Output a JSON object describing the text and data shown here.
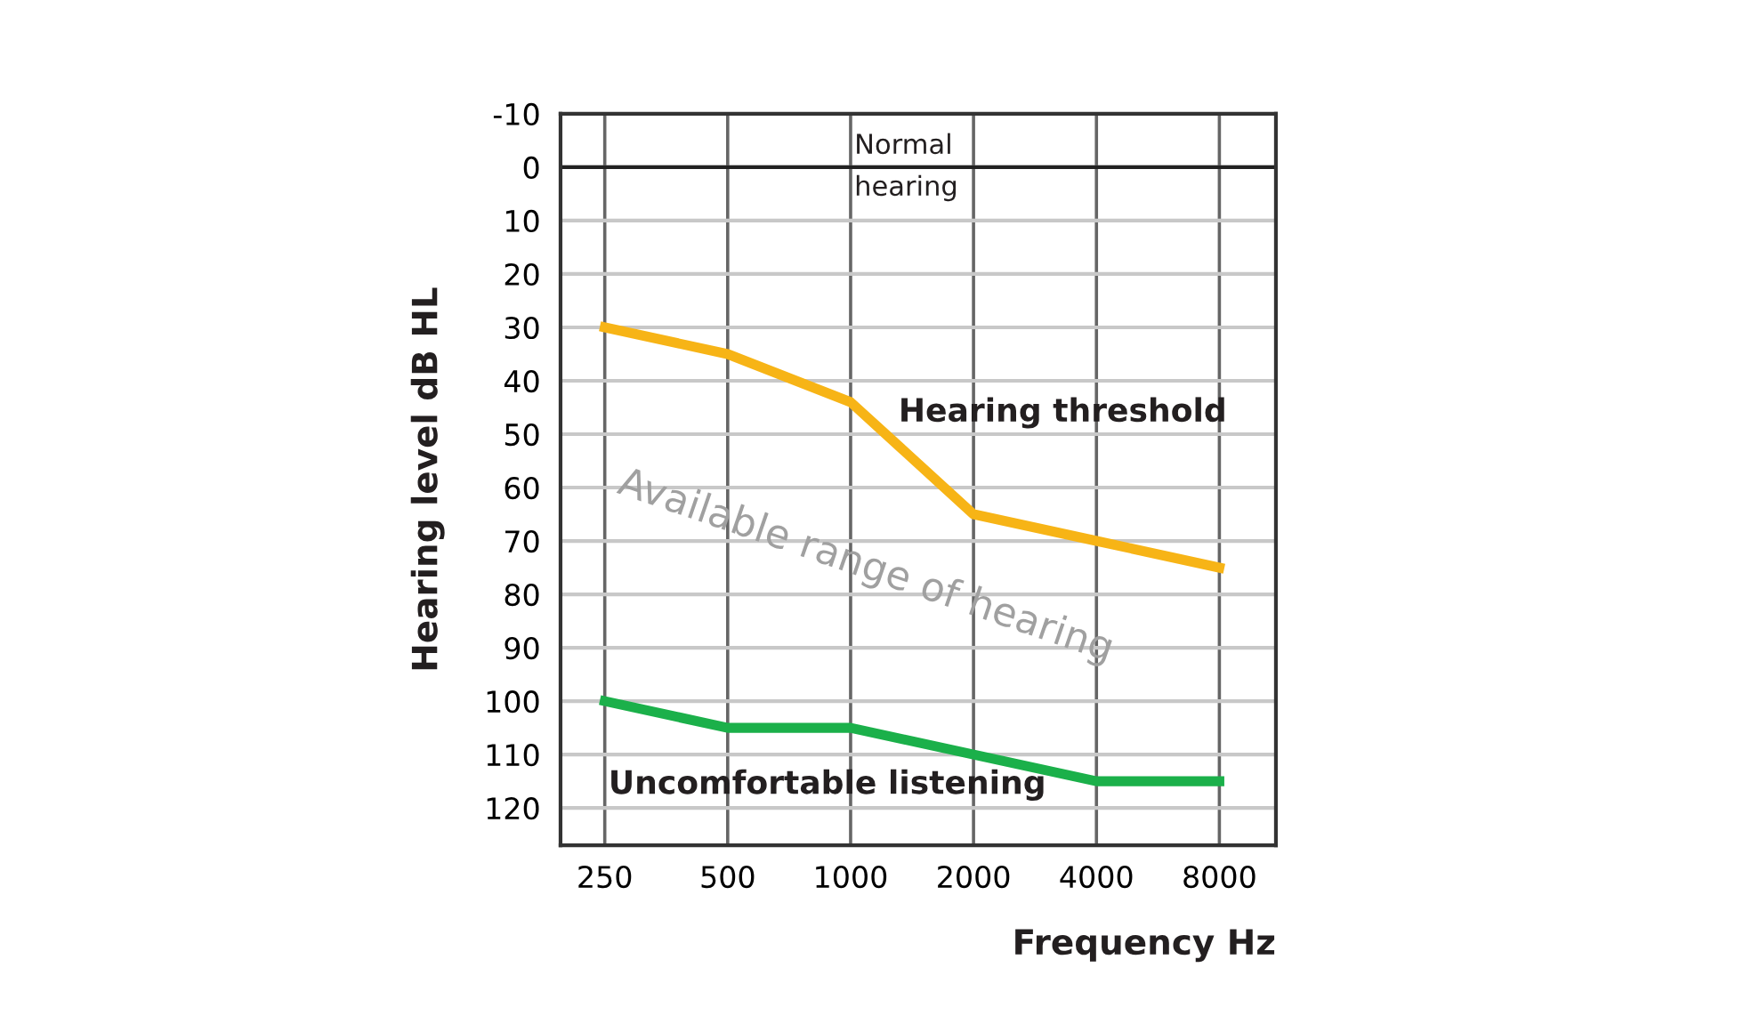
{
  "chart_data": {
    "type": "line",
    "xlabel": "Frequency Hz",
    "ylabel": "Hearing level dB HL",
    "categories": [
      "250",
      "500",
      "1000",
      "2000",
      "4000",
      "8000"
    ],
    "series": [
      {
        "name": "Hearing threshold",
        "color": "#f7b416",
        "values": [
          30,
          35,
          44,
          65,
          70,
          75
        ]
      },
      {
        "name": "Uncomfortable listening",
        "color": "#1bb04a",
        "values": [
          100,
          105,
          105,
          110,
          115,
          115
        ]
      }
    ],
    "ylim": [
      127,
      -10
    ],
    "yticks": [
      -10,
      0,
      10,
      20,
      30,
      40,
      50,
      60,
      70,
      80,
      90,
      100,
      110,
      120
    ],
    "grid": true,
    "legend": false,
    "marker": "none",
    "line_style": "solid",
    "ref_lines": [
      {
        "axis": "y",
        "value": 0,
        "color": "#222222"
      }
    ],
    "annotations": [
      "Normal\nhearing",
      "Available range of hearing"
    ]
  }
}
